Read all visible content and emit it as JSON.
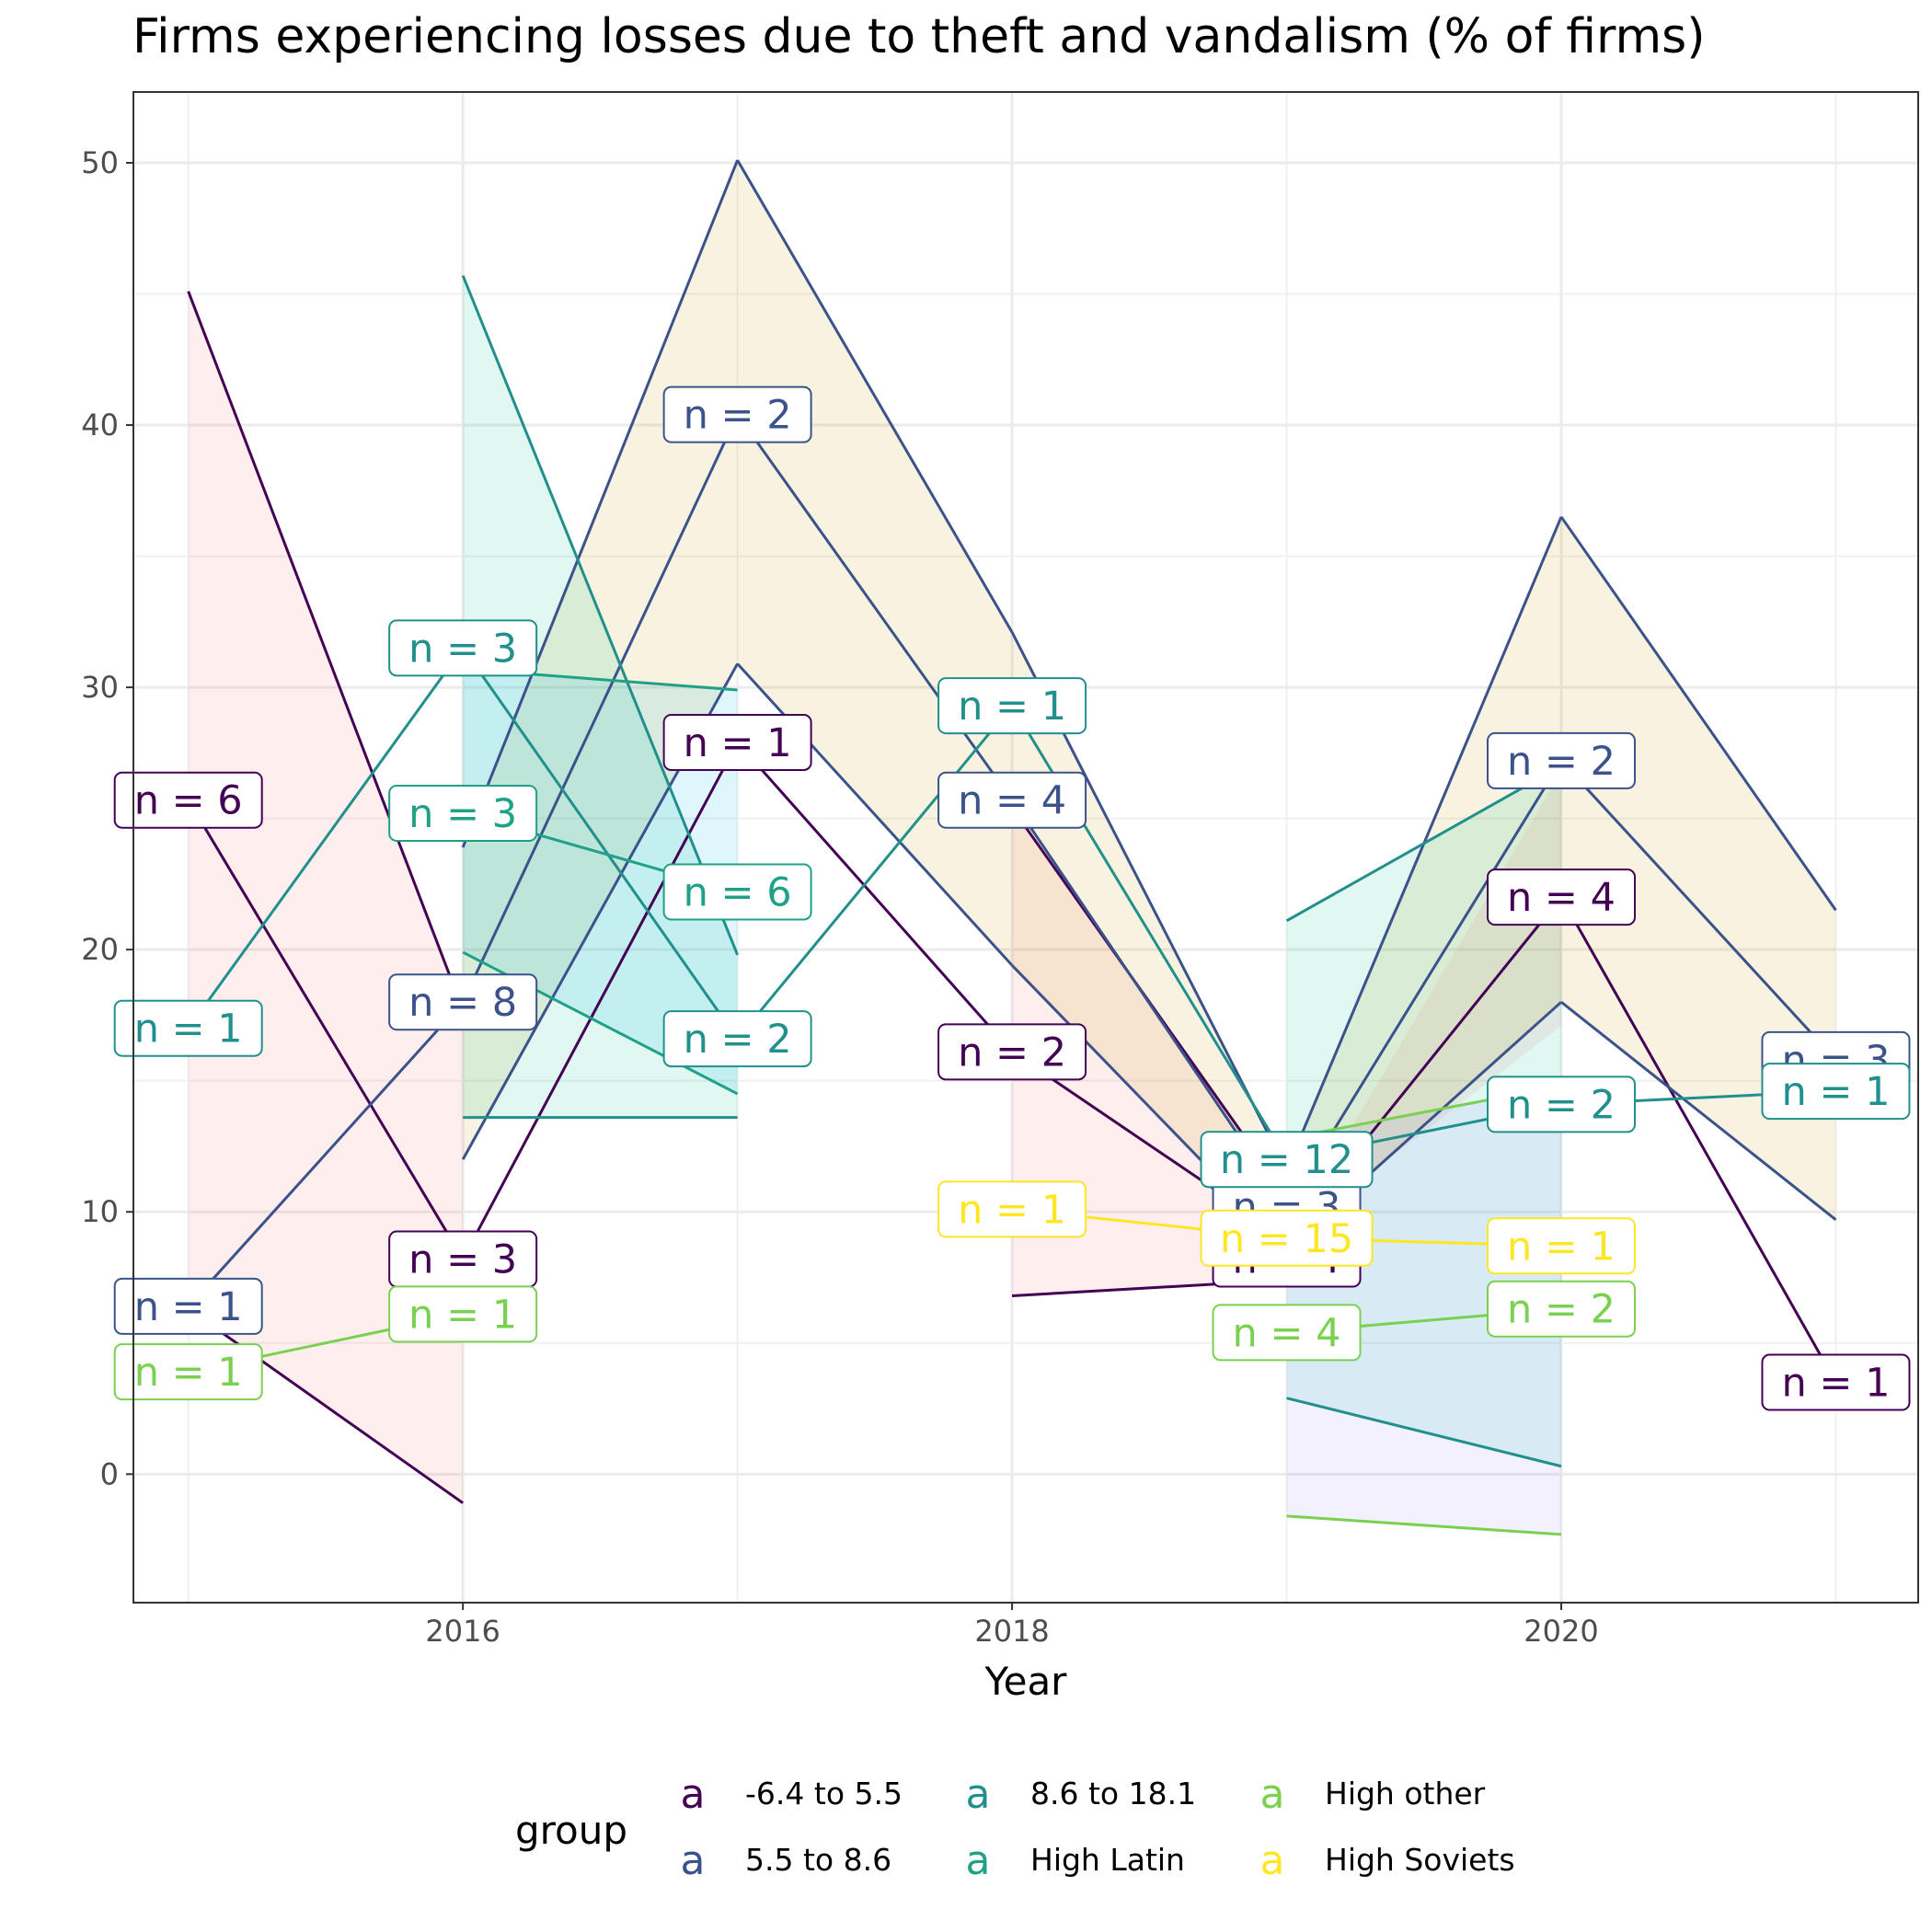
{
  "chart_data": {
    "type": "line",
    "title": "Firms experiencing losses due to theft and vandalism (% of firms)",
    "xlabel": "Year",
    "ylabel": "",
    "xlim": [
      2014.8,
      2021.3
    ],
    "ylim": [
      -4.9,
      52.7
    ],
    "x_ticks": [
      2016,
      2018,
      2020
    ],
    "y_ticks": [
      0,
      10,
      20,
      30,
      40,
      50
    ],
    "grid": true,
    "legend_title": "group",
    "legend_position": "bottom",
    "series": [
      {
        "name": "-6.4 to 5.5",
        "color": "#440154",
        "fill": "#F8766D",
        "segments": [
          {
            "x": [
              2015,
              2016
            ],
            "y": [
              25.7,
              8.2
            ],
            "lo": [
              6.3,
              -1.1
            ],
            "hi": [
              45.1,
              17.7
            ]
          },
          {
            "x": [
              2016,
              2017
            ],
            "y": [
              8.2,
              27.9
            ]
          },
          {
            "x": [
              2017,
              2018
            ],
            "y": [
              27.9,
              16.1
            ]
          },
          {
            "x": [
              2018,
              2019
            ],
            "y": [
              16.1,
              9.0
            ],
            "lo": [
              6.8,
              7.4
            ],
            "hi": [
              25.4,
              10.6
            ]
          },
          {
            "x": [
              2019,
              2020
            ],
            "y": [
              9.0,
              22.0
            ],
            "lo": [
              null,
              17.1
            ],
            "hi": [
              null,
              26.8
            ]
          },
          {
            "x": [
              2020,
              2021
            ],
            "y": [
              22.0,
              3.5
            ]
          }
        ],
        "labels": [
          {
            "x": 2015,
            "y": 25.7,
            "text": "n = 6"
          },
          {
            "x": 2016,
            "y": 8.2,
            "text": "n = 3"
          },
          {
            "x": 2017,
            "y": 27.9,
            "text": "n = 1"
          },
          {
            "x": 2018,
            "y": 16.1,
            "text": "n = 2"
          },
          {
            "x": 2019,
            "y": 8.2,
            "text": "n = 4"
          },
          {
            "x": 2020,
            "y": 22.0,
            "text": "n = 4"
          },
          {
            "x": 2021,
            "y": 3.5,
            "text": "n = 1"
          }
        ]
      },
      {
        "name": "5.5 to 8.6",
        "color": "#3B528B",
        "fill": "#C49A00",
        "segments": [
          {
            "x": [
              2015,
              2016
            ],
            "y": [
              6.4,
              18.0
            ]
          },
          {
            "x": [
              2016,
              2017
            ],
            "y": [
              18.0,
              40.4
            ],
            "lo": [
              12.0,
              30.9
            ],
            "hi": [
              23.9,
              50.1
            ]
          },
          {
            "x": [
              2017,
              2018
            ],
            "y": [
              40.4,
              25.7
            ],
            "lo": [
              30.9,
              19.4
            ],
            "hi": [
              50.1,
              32.1
            ]
          },
          {
            "x": [
              2018,
              2019
            ],
            "y": [
              25.7,
              10.2
            ],
            "lo": [
              19.4,
              8.6
            ],
            "hi": [
              32.1,
              11.6
            ]
          },
          {
            "x": [
              2019,
              2020
            ],
            "y": [
              10.2,
              27.2
            ],
            "lo": [
              8.6,
              18.0
            ],
            "hi": [
              11.6,
              36.5
            ]
          },
          {
            "x": [
              2020,
              2021
            ],
            "y": [
              27.2,
              15.8
            ],
            "lo": [
              18.0,
              9.7
            ],
            "hi": [
              36.5,
              21.5
            ]
          }
        ],
        "labels": [
          {
            "x": 2015,
            "y": 6.4,
            "text": "n = 1"
          },
          {
            "x": 2016,
            "y": 18.0,
            "text": "n = 8"
          },
          {
            "x": 2017,
            "y": 40.4,
            "text": "n = 2"
          },
          {
            "x": 2018,
            "y": 25.7,
            "text": "n = 4"
          },
          {
            "x": 2019,
            "y": 10.2,
            "text": "n = 3"
          },
          {
            "x": 2020,
            "y": 27.2,
            "text": "n = 2"
          },
          {
            "x": 2021,
            "y": 15.8,
            "text": "n = 3"
          }
        ]
      },
      {
        "name": "8.6 to 18.1",
        "color": "#21908C",
        "fill": "#00C094",
        "segments": [
          {
            "x": [
              2015,
              2016
            ],
            "y": [
              17.0,
              31.5
            ]
          },
          {
            "x": [
              2016,
              2017
            ],
            "y": [
              31.5,
              16.6
            ],
            "lo": [
              13.6,
              13.6
            ],
            "hi": [
              45.7,
              19.8
            ]
          },
          {
            "x": [
              2017,
              2018
            ],
            "y": [
              16.6,
              29.3
            ]
          },
          {
            "x": [
              2018,
              2019
            ],
            "y": [
              29.3,
              12.0
            ]
          },
          {
            "x": [
              2019,
              2020
            ],
            "y": [
              12.0,
              14.1
            ],
            "lo": [
              2.9,
              0.3
            ],
            "hi": [
              21.1,
              27.0
            ]
          },
          {
            "x": [
              2020,
              2021
            ],
            "y": [
              14.1,
              14.6
            ]
          }
        ],
        "labels": [
          {
            "x": 2015,
            "y": 17.0,
            "text": "n = 1"
          },
          {
            "x": 2016,
            "y": 31.5,
            "text": "n = 3"
          },
          {
            "x": 2017,
            "y": 16.6,
            "text": "n = 2"
          },
          {
            "x": 2018,
            "y": 29.3,
            "text": "n = 1"
          },
          {
            "x": 2019,
            "y": 12.0,
            "text": "n = 12"
          },
          {
            "x": 2020,
            "y": 14.1,
            "text": "n = 2"
          },
          {
            "x": 2021,
            "y": 14.6,
            "text": "n = 1"
          }
        ]
      },
      {
        "name": "High Latin",
        "color": "#1FA187",
        "fill": "#00B6EB",
        "segments": [
          {
            "x": [
              2016,
              2017
            ],
            "y": [
              25.2,
              22.2
            ],
            "lo": [
              19.9,
              14.5
            ],
            "hi": [
              30.7,
              29.9
            ]
          }
        ],
        "labels": [
          {
            "x": 2016,
            "y": 25.2,
            "text": "n = 3"
          },
          {
            "x": 2017,
            "y": 22.2,
            "text": "n = 6"
          }
        ]
      },
      {
        "name": "High other",
        "color": "#7AD151",
        "fill": "#A58AFF",
        "segments": [
          {
            "x": [
              2015,
              2016
            ],
            "y": [
              3.9,
              6.1
            ]
          },
          {
            "x": [
              2019,
              2020
            ],
            "y": [
              5.4,
              6.3
            ],
            "lo": [
              -1.6,
              -2.3
            ],
            "hi": [
              12.8,
              14.8
            ]
          }
        ],
        "labels": [
          {
            "x": 2015,
            "y": 3.9,
            "text": "n = 1"
          },
          {
            "x": 2016,
            "y": 6.1,
            "text": "n = 1"
          },
          {
            "x": 2019,
            "y": 5.4,
            "text": "n = 4"
          },
          {
            "x": 2020,
            "y": 6.3,
            "text": "n = 2"
          }
        ]
      },
      {
        "name": "High Soviets",
        "color": "#FDE725",
        "fill": "#FB61D7",
        "segments": [
          {
            "x": [
              2018,
              2019
            ],
            "y": [
              10.1,
              9.0
            ]
          },
          {
            "x": [
              2019,
              2020
            ],
            "y": [
              9.0,
              8.7
            ]
          }
        ],
        "labels": [
          {
            "x": 2018,
            "y": 10.1,
            "text": "n = 1"
          },
          {
            "x": 2019,
            "y": 9.0,
            "text": "n = 15"
          },
          {
            "x": 2020,
            "y": 8.7,
            "text": "n = 1"
          }
        ]
      }
    ]
  }
}
